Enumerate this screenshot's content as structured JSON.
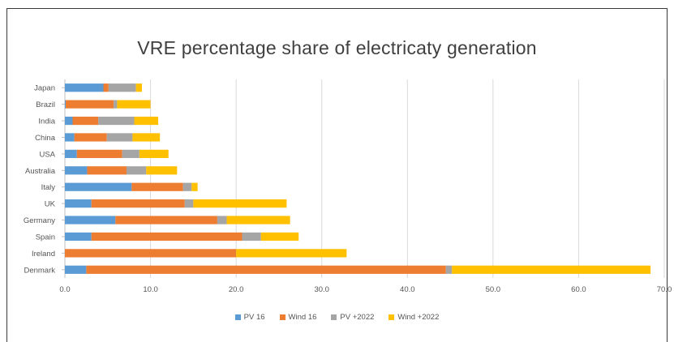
{
  "chart_data": {
    "type": "bar",
    "orientation": "horizontal",
    "stacked": true,
    "title": "VRE percentage share of electricaty generation",
    "categories": [
      "Japan",
      "Brazil",
      "India",
      "China",
      "USA",
      "Australia",
      "Italy",
      "UK",
      "Germany",
      "Spain",
      "Ireland",
      "Denmark"
    ],
    "series": [
      {
        "name": "PV 16",
        "color": "#5b9bd5",
        "values": [
          4.5,
          0.1,
          0.9,
          1.1,
          1.4,
          2.6,
          7.8,
          3.1,
          5.9,
          3.1,
          0.0,
          2.5
        ]
      },
      {
        "name": "Wind 16",
        "color": "#ed7d31",
        "values": [
          0.6,
          5.6,
          3.0,
          3.8,
          5.3,
          4.6,
          6.0,
          10.9,
          11.9,
          17.6,
          20.0,
          42.0
        ]
      },
      {
        "name": "PV +2022",
        "color": "#a5a5a5",
        "values": [
          3.2,
          0.4,
          4.2,
          3.0,
          2.0,
          2.3,
          1.0,
          1.0,
          1.1,
          2.2,
          0.0,
          0.7
        ]
      },
      {
        "name": "Wind +2022",
        "color": "#ffc000",
        "values": [
          0.7,
          3.9,
          2.8,
          3.2,
          3.4,
          3.6,
          0.7,
          10.9,
          7.4,
          4.4,
          12.9,
          23.2
        ]
      }
    ],
    "xlim": [
      0,
      70
    ],
    "xticks": [
      "0.0",
      "10.0",
      "20.0",
      "30.0",
      "40.0",
      "50.0",
      "60.0",
      "70.0"
    ],
    "grid": true,
    "legend_position": "bottom"
  }
}
